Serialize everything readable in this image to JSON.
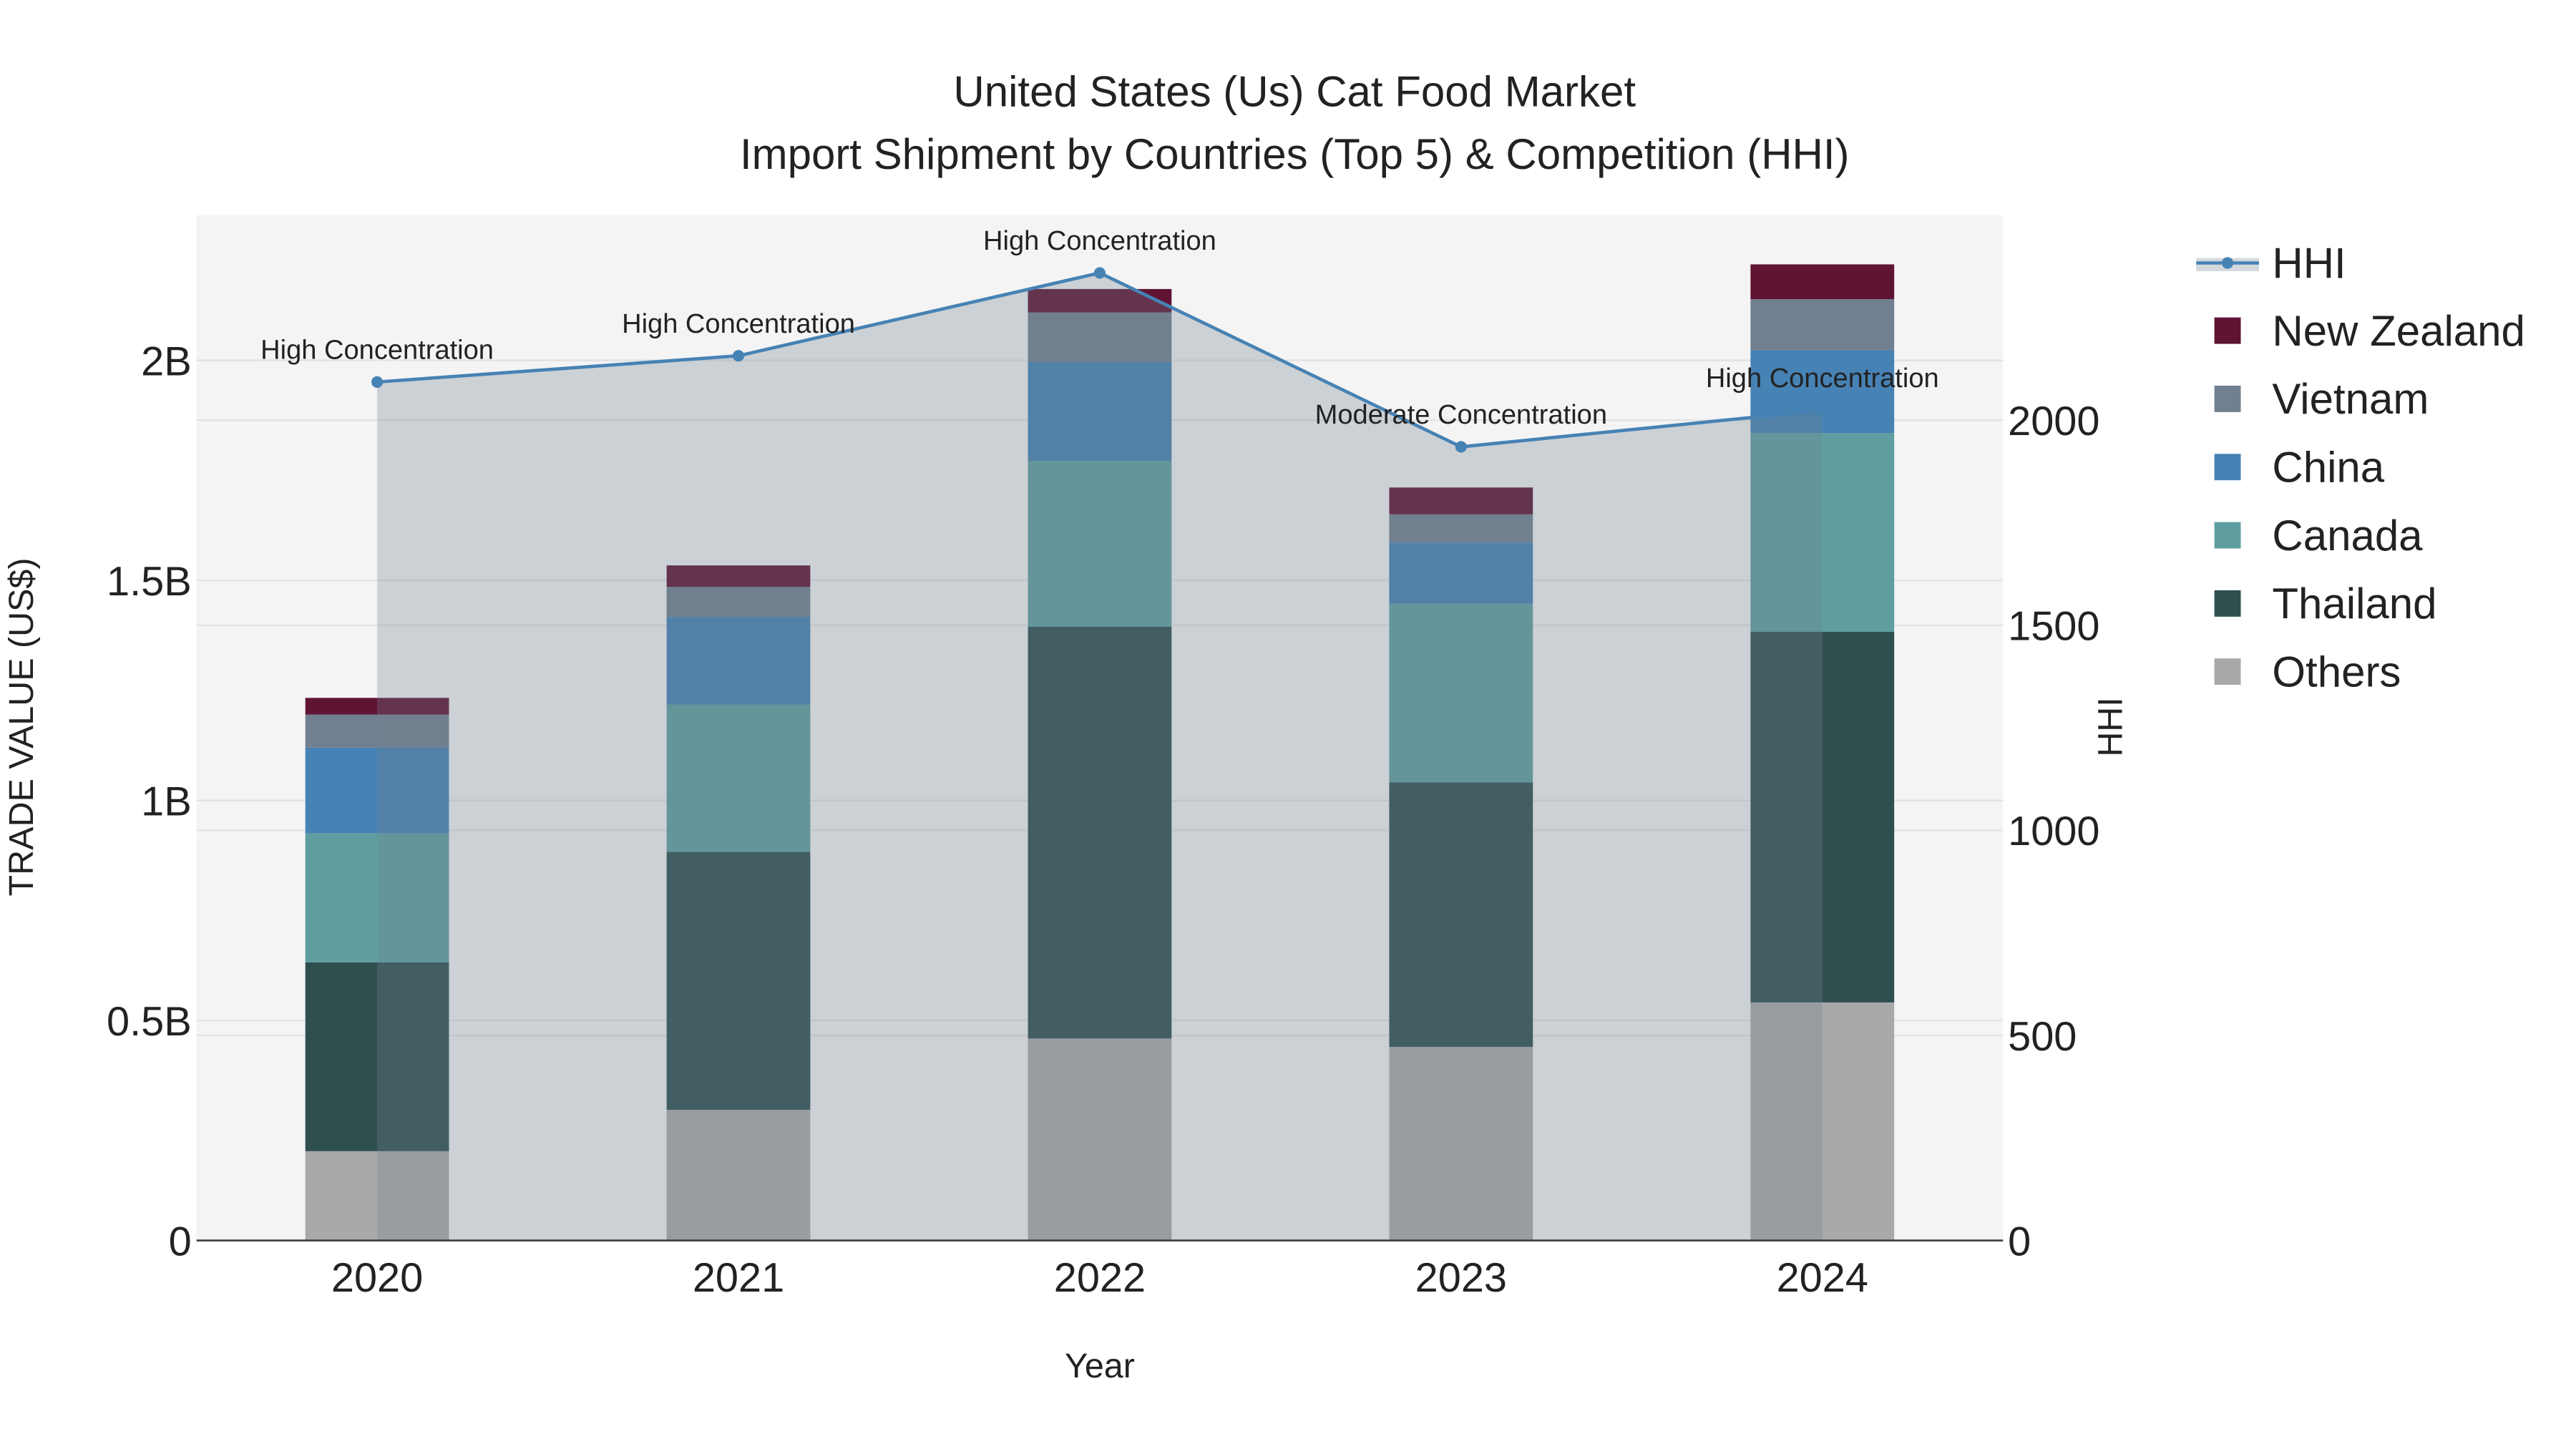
{
  "chart_data": {
    "type": "bar",
    "title": "United States (Us) Cat Food Market",
    "subtitle": "Import Shipment by Countries (Top 5) & Competition (HHI)",
    "xlabel": "Year",
    "ylabel": "TRADE VALUE (US$)",
    "y2label": "HHI",
    "categories": [
      "2020",
      "2021",
      "2022",
      "2023",
      "2024"
    ],
    "ylim": [
      0,
      2.33
    ],
    "y2lim": [
      0,
      2500
    ],
    "yticks": [
      {
        "v": 0,
        "label": "0"
      },
      {
        "v": 0.5,
        "label": "0.5B"
      },
      {
        "v": 1,
        "label": "1B"
      },
      {
        "v": 1.5,
        "label": "1.5B"
      },
      {
        "v": 2,
        "label": "2B"
      }
    ],
    "y2ticks": [
      {
        "v": 0,
        "label": "0"
      },
      {
        "v": 500,
        "label": "500"
      },
      {
        "v": 1000,
        "label": "1000"
      },
      {
        "v": 1500,
        "label": "1500"
      },
      {
        "v": 2000,
        "label": "2000"
      }
    ],
    "value_unit": "billion US$",
    "series": [
      {
        "name": "Others",
        "color": "#a9a9a9",
        "values": [
          0.203,
          0.297,
          0.459,
          0.44,
          0.541
        ]
      },
      {
        "name": "Thailand",
        "color": "#2f4f4f",
        "values": [
          0.429,
          0.586,
          0.936,
          0.601,
          0.842
        ]
      },
      {
        "name": "Canada",
        "color": "#5f9ea0",
        "values": [
          0.293,
          0.335,
          0.376,
          0.406,
          0.452
        ]
      },
      {
        "name": "China",
        "color": "#4682b4",
        "values": [
          0.195,
          0.199,
          0.225,
          0.139,
          0.188
        ]
      },
      {
        "name": "Vietnam",
        "color": "#708090",
        "values": [
          0.075,
          0.068,
          0.113,
          0.064,
          0.116
        ]
      },
      {
        "name": "New Zealand",
        "color": "#5f1434",
        "values": [
          0.038,
          0.049,
          0.053,
          0.061,
          0.079
        ]
      }
    ],
    "hhi": {
      "name": "HHI",
      "color": "#4682b4",
      "values": [
        2093,
        2157,
        2359,
        1935,
        2024
      ],
      "annotations": [
        "High Concentration",
        "High Concentration",
        "High Concentration",
        "Moderate Concentration",
        "High Concentration"
      ]
    },
    "legend": {
      "placement": "right",
      "order": [
        "HHI",
        "New Zealand",
        "Vietnam",
        "China",
        "Canada",
        "Thailand",
        "Others"
      ]
    }
  }
}
